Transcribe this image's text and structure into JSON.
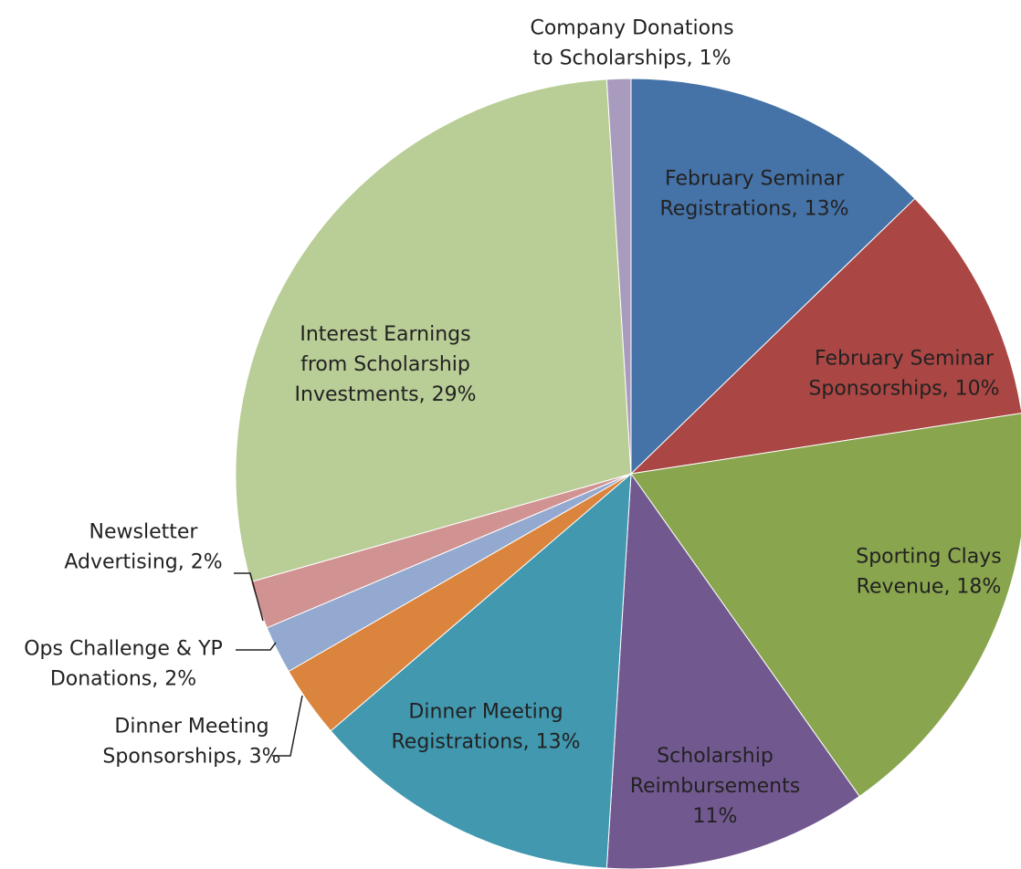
{
  "chart_data": {
    "type": "pie",
    "values": [
      13,
      10,
      18,
      11,
      13,
      3,
      2,
      2,
      29,
      1
    ],
    "value_labels": [
      [
        "February Seminar",
        "Registrations, 13%"
      ],
      [
        "February Seminar",
        "Sponsorships, 10%"
      ],
      [
        "Sporting Clays",
        "Revenue, 18%"
      ],
      [
        "Scholarship",
        "Reimbursements",
        "11%"
      ],
      [
        "Dinner Meeting",
        "Registrations, 13%"
      ],
      [
        "Dinner Meeting",
        "Sponsorships, 3%"
      ],
      [
        "Ops Challenge & YP",
        "Donations, 2%"
      ],
      [
        "Newsletter",
        "Advertising, 2%"
      ],
      [
        "Interest Earnings",
        "from Scholarship",
        "Investments, 29%"
      ],
      [
        "Company Donations",
        "to Scholarships, 1%"
      ]
    ],
    "colors": [
      "#4572a7",
      "#aa4643",
      "#89a54e",
      "#71588f",
      "#4198af",
      "#db843d",
      "#93a9cf",
      "#d19392",
      "#b9cd96",
      "#a99bbd"
    ]
  }
}
